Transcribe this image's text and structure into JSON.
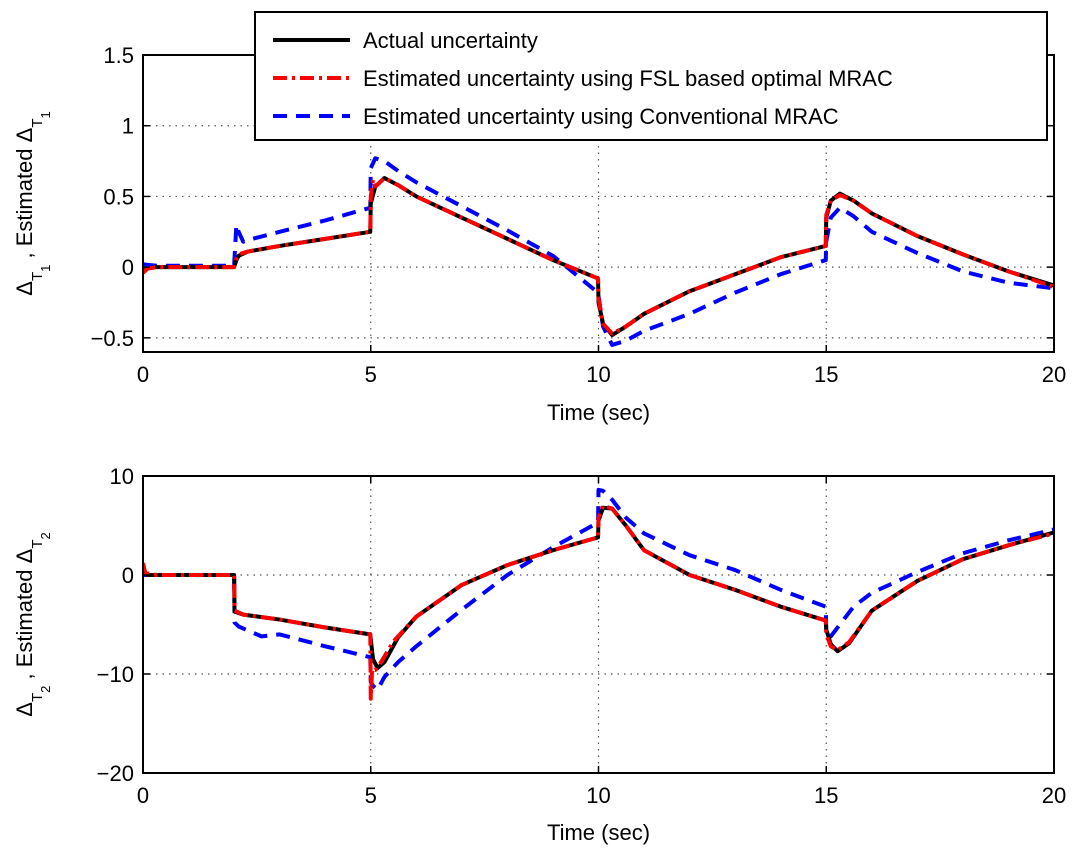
{
  "colors": {
    "actual": "#000000",
    "fsl": "#ff0000",
    "conventional": "#0000ff",
    "grid": "#555555",
    "axis": "#000000"
  },
  "chart_data": [
    {
      "type": "line",
      "xlabel": "Time (sec)",
      "ylabel": {
        "parts": [
          {
            "text": "Δ",
            "style": "normal"
          },
          {
            "text": "T",
            "style": "sub"
          },
          {
            "text": "1",
            "style": "subsub"
          },
          {
            "text": " , Estimated Δ",
            "style": "normal"
          },
          {
            "text": "T",
            "style": "sub"
          },
          {
            "text": "1",
            "style": "subsub"
          }
        ]
      },
      "xlim": [
        0,
        20
      ],
      "ylim": [
        -0.6,
        1.5
      ],
      "xticks": [
        0,
        5,
        10,
        15,
        20
      ],
      "xtick_labels": [
        "0",
        "5",
        "10",
        "15",
        "20"
      ],
      "yticks": [
        -0.5,
        0,
        0.5,
        1,
        1.5
      ],
      "ytick_labels": [
        "−0.5",
        "0",
        "0.5",
        "1",
        "1.5"
      ],
      "grid": true,
      "legend": {
        "position": "top-right",
        "entries": [
          {
            "label": "Actual uncertainty",
            "series": "actual"
          },
          {
            "label": "Estimated uncertainty using FSL based optimal MRAC",
            "series": "fsl"
          },
          {
            "label": "Estimated uncertainty using Conventional MRAC",
            "series": "conventional"
          }
        ]
      },
      "series": [
        {
          "key": "actual",
          "style": "solid",
          "x": [
            0,
            0.1,
            0.3,
            1,
            2,
            2.05,
            2.1,
            2.3,
            3,
            4,
            4.99,
            5.0,
            5.1,
            5.3,
            5.6,
            6,
            7,
            8,
            9,
            9.99,
            10.0,
            10.1,
            10.3,
            10.6,
            11,
            12,
            13,
            14,
            14.99,
            15.0,
            15.1,
            15.3,
            15.6,
            16,
            17,
            18,
            19,
            20
          ],
          "y": [
            -0.03,
            -0.01,
            0,
            0,
            0,
            0.05,
            0.08,
            0.11,
            0.15,
            0.2,
            0.25,
            0.45,
            0.57,
            0.63,
            0.58,
            0.5,
            0.35,
            0.2,
            0.05,
            -0.08,
            -0.25,
            -0.4,
            -0.48,
            -0.42,
            -0.33,
            -0.17,
            -0.05,
            0.07,
            0.15,
            0.35,
            0.47,
            0.52,
            0.47,
            0.38,
            0.22,
            0.09,
            -0.03,
            -0.13
          ]
        },
        {
          "key": "fsl",
          "style": "dashdot",
          "x": [
            0,
            0.1,
            0.3,
            1,
            2,
            2.05,
            2.1,
            2.3,
            3,
            4,
            4.99,
            5.0,
            5.05,
            5.1,
            5.3,
            5.6,
            6,
            7,
            8,
            9,
            9.99,
            10.0,
            10.1,
            10.3,
            10.6,
            11,
            12,
            13,
            14,
            14.99,
            15.0,
            15.1,
            15.3,
            15.6,
            16,
            17,
            18,
            19,
            20
          ],
          "y": [
            -0.04,
            -0.01,
            0,
            0,
            0,
            0.06,
            0.09,
            0.11,
            0.15,
            0.2,
            0.25,
            0.5,
            0.62,
            0.57,
            0.63,
            0.58,
            0.5,
            0.35,
            0.2,
            0.05,
            -0.08,
            -0.22,
            -0.4,
            -0.47,
            -0.42,
            -0.33,
            -0.17,
            -0.05,
            0.07,
            0.15,
            0.37,
            0.47,
            0.51,
            0.47,
            0.38,
            0.22,
            0.09,
            -0.03,
            -0.14
          ]
        },
        {
          "key": "conventional",
          "style": "dashed",
          "x": [
            0,
            0.3,
            1,
            2,
            2.05,
            2.1,
            2.2,
            2.4,
            3,
            4,
            4.99,
            5.0,
            5.1,
            5.3,
            5.6,
            6,
            7,
            8,
            9,
            9.99,
            10.0,
            10.1,
            10.3,
            10.6,
            11,
            12,
            13,
            14,
            14.99,
            15.0,
            15.1,
            15.3,
            15.6,
            16,
            17,
            18,
            19,
            20
          ],
          "y": [
            0.02,
            0.01,
            0.01,
            0.01,
            0.3,
            0.25,
            0.18,
            0.2,
            0.25,
            0.33,
            0.42,
            0.7,
            0.77,
            0.75,
            0.68,
            0.6,
            0.43,
            0.26,
            0.08,
            -0.18,
            -0.2,
            -0.42,
            -0.55,
            -0.52,
            -0.45,
            -0.33,
            -0.18,
            -0.05,
            0.05,
            0.18,
            0.35,
            0.42,
            0.36,
            0.25,
            0.1,
            -0.03,
            -0.11,
            -0.15
          ]
        }
      ]
    },
    {
      "type": "line",
      "xlabel": "Time (sec)",
      "ylabel": {
        "parts": [
          {
            "text": "Δ",
            "style": "normal"
          },
          {
            "text": "T",
            "style": "sub"
          },
          {
            "text": "2",
            "style": "subsub"
          },
          {
            "text": " , Estimated Δ",
            "style": "normal"
          },
          {
            "text": "T",
            "style": "sub"
          },
          {
            "text": "2",
            "style": "subsub"
          }
        ]
      },
      "xlim": [
        0,
        20
      ],
      "ylim": [
        -20,
        10
      ],
      "xticks": [
        0,
        5,
        10,
        15,
        20
      ],
      "xtick_labels": [
        "0",
        "5",
        "10",
        "15",
        "20"
      ],
      "yticks": [
        -20,
        -10,
        0,
        10
      ],
      "ytick_labels": [
        "−20",
        "−10",
        "0",
        "10"
      ],
      "grid": true,
      "series": [
        {
          "key": "actual",
          "style": "solid",
          "x": [
            0,
            0.1,
            0.3,
            2,
            2.01,
            2.2,
            3,
            4,
            4.99,
            5.0,
            5.05,
            5.15,
            5.3,
            5.6,
            6,
            7,
            8,
            9,
            9.99,
            10.0,
            10.1,
            10.3,
            10.6,
            11,
            12,
            13,
            14,
            14.99,
            15.0,
            15.1,
            15.25,
            15.5,
            16,
            17,
            18,
            19,
            20
          ],
          "y": [
            0.5,
            0,
            0,
            0,
            -3.7,
            -4.0,
            -4.5,
            -5.3,
            -6.0,
            -6.5,
            -8.5,
            -9.4,
            -8.8,
            -6.3,
            -4.2,
            -1.0,
            1.0,
            2.5,
            3.8,
            5.5,
            6.8,
            6.7,
            5.0,
            2.5,
            0,
            -1.5,
            -3.2,
            -4.6,
            -5.5,
            -7.0,
            -7.7,
            -6.9,
            -3.6,
            -0.6,
            1.6,
            3.0,
            4.3
          ]
        },
        {
          "key": "fsl",
          "style": "dashdot",
          "x": [
            0,
            0.05,
            0.3,
            2,
            2.01,
            2.2,
            3,
            4,
            4.99,
            5.0,
            5.03,
            5.1,
            5.2,
            5.5,
            6,
            7,
            8,
            9,
            9.99,
            10.0,
            10.1,
            10.3,
            10.6,
            11,
            12,
            13,
            14,
            14.99,
            15.0,
            15.1,
            15.25,
            15.5,
            16,
            17,
            18,
            19,
            20
          ],
          "y": [
            1.2,
            0.2,
            0,
            0,
            -3.6,
            -4.0,
            -4.5,
            -5.3,
            -6.0,
            -12.5,
            -9.5,
            -9.6,
            -9.0,
            -6.7,
            -4.2,
            -1.0,
            1.0,
            2.5,
            3.8,
            5.8,
            7.0,
            6.7,
            5.0,
            2.5,
            0,
            -1.5,
            -3.2,
            -4.6,
            -6.0,
            -7.2,
            -7.6,
            -6.8,
            -3.6,
            -0.6,
            1.6,
            3.0,
            4.2
          ]
        },
        {
          "key": "conventional",
          "style": "dashed",
          "x": [
            0,
            0.3,
            2,
            2.01,
            2.1,
            2.3,
            2.6,
            3,
            4,
            4.99,
            5.0,
            5.05,
            5.15,
            5.3,
            5.6,
            6,
            7,
            8,
            9,
            9.99,
            10.0,
            10.1,
            10.3,
            10.6,
            11,
            12,
            13,
            14,
            14.99,
            15.0,
            15.1,
            15.3,
            15.6,
            16,
            17,
            18,
            19,
            20
          ],
          "y": [
            0,
            0,
            0,
            -4.8,
            -5.2,
            -5.6,
            -6.2,
            -6.0,
            -7.2,
            -8.3,
            -10.8,
            -11.2,
            -11.6,
            -10.3,
            -8.8,
            -7.2,
            -3.5,
            0,
            2.8,
            5.3,
            8.6,
            8.5,
            7.6,
            5.8,
            4.2,
            2.0,
            0.5,
            -1.5,
            -3.2,
            -6.0,
            -6.2,
            -5.0,
            -3.2,
            -1.8,
            0.3,
            2.2,
            3.5,
            4.6
          ]
        }
      ]
    }
  ]
}
